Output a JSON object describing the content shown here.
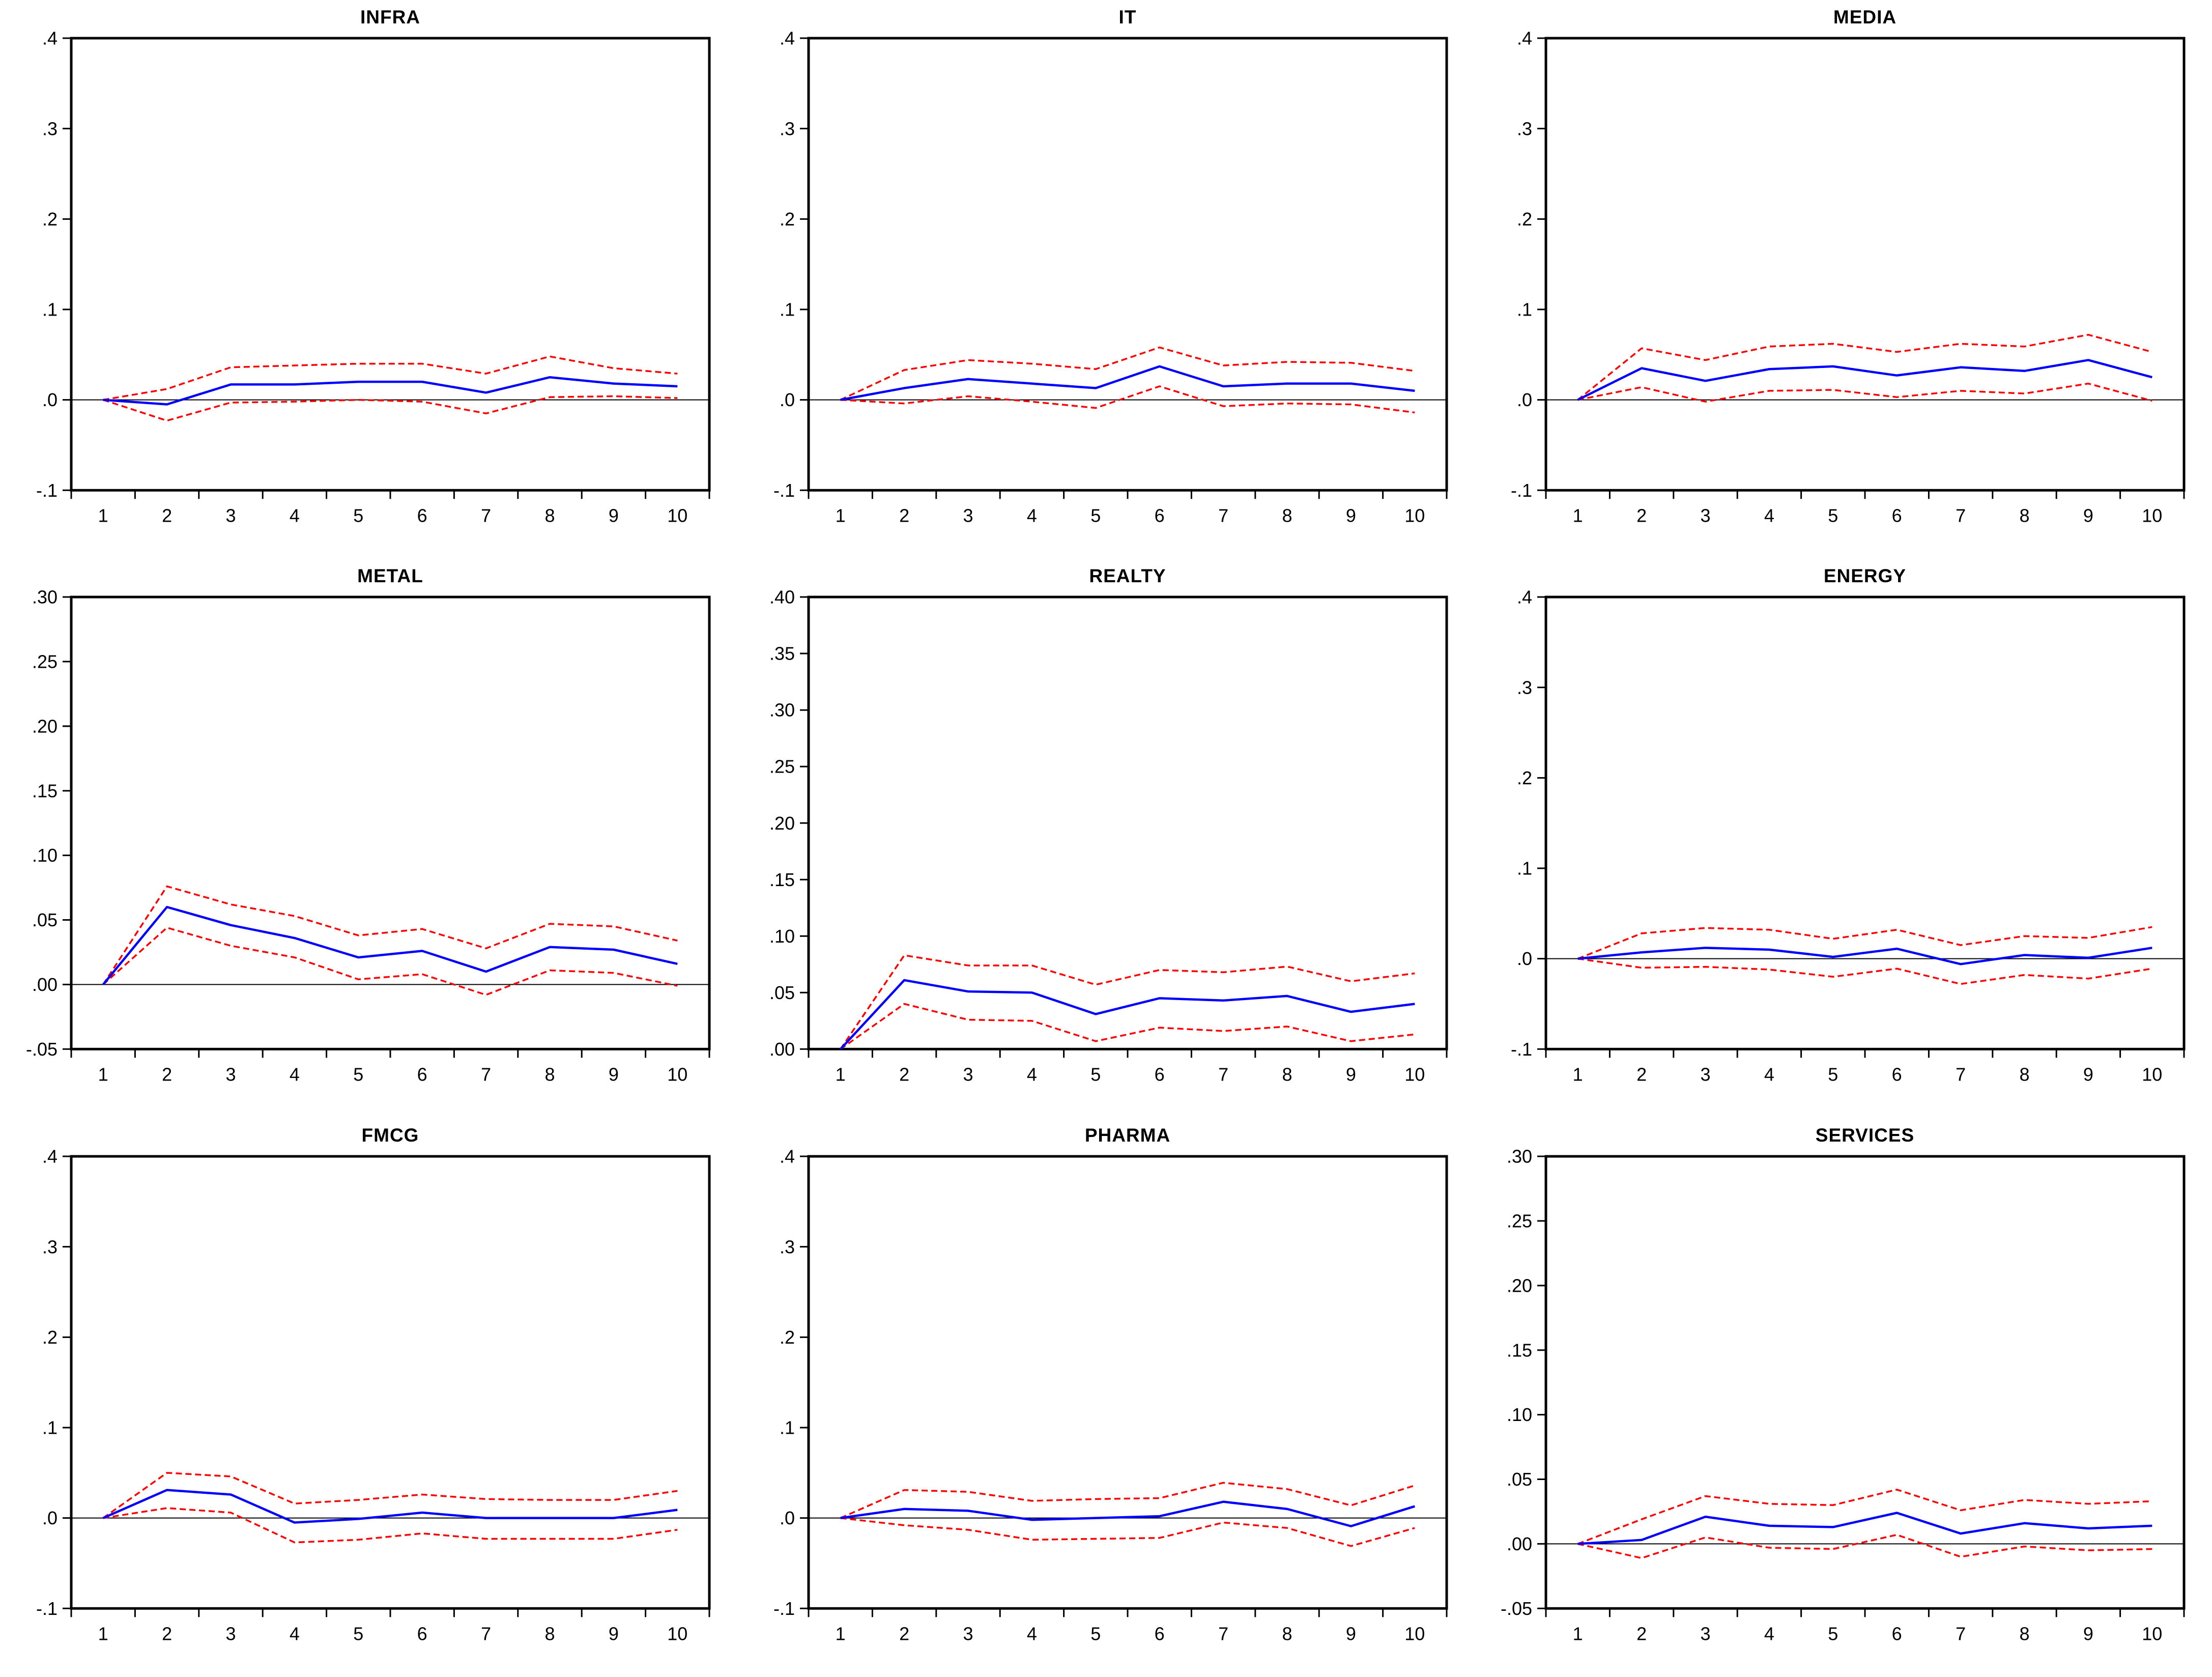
{
  "page": {
    "background": "#ffffff"
  },
  "colors": {
    "frame": "#000000",
    "zero_line": "#000000",
    "response_line": "#0000ff",
    "band_line": "#ff0000"
  },
  "chart_data": [
    {
      "type": "line",
      "title": "INFRA",
      "xlabel": "",
      "ylabel": "",
      "x": [
        1,
        2,
        3,
        4,
        5,
        6,
        7,
        8,
        9,
        10
      ],
      "ylim": [
        -0.1,
        0.4
      ],
      "grid": false,
      "legend": "none",
      "yticks": [
        {
          "label": ".4",
          "value": 0.4
        },
        {
          "label": ".3",
          "value": 0.3
        },
        {
          "label": ".2",
          "value": 0.2
        },
        {
          "label": ".1",
          "value": 0.1
        },
        {
          "label": ".0",
          "value": 0.0
        },
        {
          "label": "-.1",
          "value": -0.1
        }
      ],
      "series": [
        {
          "name": "upper-band",
          "style": "dashed",
          "values": [
            0.0,
            0.012,
            0.036,
            0.038,
            0.04,
            0.04,
            0.029,
            0.048,
            0.035,
            0.029
          ]
        },
        {
          "name": "lower-band",
          "style": "dashed",
          "values": [
            0.0,
            -0.023,
            -0.003,
            -0.002,
            0.0,
            -0.002,
            -0.015,
            0.003,
            0.004,
            0.002
          ]
        },
        {
          "name": "response",
          "style": "solid",
          "values": [
            0.0,
            -0.005,
            0.017,
            0.017,
            0.02,
            0.02,
            0.008,
            0.025,
            0.018,
            0.015
          ]
        }
      ]
    },
    {
      "type": "line",
      "title": "IT",
      "xlabel": "",
      "ylabel": "",
      "x": [
        1,
        2,
        3,
        4,
        5,
        6,
        7,
        8,
        9,
        10
      ],
      "ylim": [
        -0.1,
        0.4
      ],
      "grid": false,
      "legend": "none",
      "yticks": [
        {
          "label": ".4",
          "value": 0.4
        },
        {
          "label": ".3",
          "value": 0.3
        },
        {
          "label": ".2",
          "value": 0.2
        },
        {
          "label": ".1",
          "value": 0.1
        },
        {
          "label": ".0",
          "value": 0.0
        },
        {
          "label": "-.1",
          "value": -0.1
        }
      ],
      "series": [
        {
          "name": "upper-band",
          "style": "dashed",
          "values": [
            0.0,
            0.033,
            0.044,
            0.04,
            0.034,
            0.058,
            0.038,
            0.042,
            0.041,
            0.032
          ]
        },
        {
          "name": "lower-band",
          "style": "dashed",
          "values": [
            0.0,
            -0.004,
            0.004,
            -0.002,
            -0.009,
            0.015,
            -0.007,
            -0.004,
            -0.005,
            -0.014
          ]
        },
        {
          "name": "response",
          "style": "solid",
          "values": [
            0.0,
            0.013,
            0.023,
            0.018,
            0.013,
            0.037,
            0.015,
            0.018,
            0.018,
            0.01
          ]
        }
      ]
    },
    {
      "type": "line",
      "title": "MEDIA",
      "xlabel": "",
      "ylabel": "",
      "x": [
        1,
        2,
        3,
        4,
        5,
        6,
        7,
        8,
        9,
        10
      ],
      "ylim": [
        -0.1,
        0.4
      ],
      "grid": false,
      "legend": "none",
      "yticks": [
        {
          "label": ".4",
          "value": 0.4
        },
        {
          "label": ".3",
          "value": 0.3
        },
        {
          "label": ".2",
          "value": 0.2
        },
        {
          "label": ".1",
          "value": 0.1
        },
        {
          "label": ".0",
          "value": 0.0
        },
        {
          "label": "-.1",
          "value": -0.1
        }
      ],
      "series": [
        {
          "name": "upper-band",
          "style": "dashed",
          "values": [
            0.0,
            0.057,
            0.044,
            0.059,
            0.062,
            0.053,
            0.062,
            0.059,
            0.072,
            0.053
          ]
        },
        {
          "name": "lower-band",
          "style": "dashed",
          "values": [
            0.0,
            0.014,
            -0.002,
            0.01,
            0.011,
            0.003,
            0.01,
            0.007,
            0.018,
            -0.001
          ]
        },
        {
          "name": "response",
          "style": "solid",
          "values": [
            0.0,
            0.035,
            0.021,
            0.034,
            0.037,
            0.027,
            0.036,
            0.032,
            0.044,
            0.025
          ]
        }
      ]
    },
    {
      "type": "line",
      "title": "METAL",
      "xlabel": "",
      "ylabel": "",
      "x": [
        1,
        2,
        3,
        4,
        5,
        6,
        7,
        8,
        9,
        10
      ],
      "ylim": [
        -0.05,
        0.3
      ],
      "grid": false,
      "legend": "none",
      "yticks": [
        {
          "label": ".30",
          "value": 0.3
        },
        {
          "label": ".25",
          "value": 0.25
        },
        {
          "label": ".20",
          "value": 0.2
        },
        {
          "label": ".15",
          "value": 0.15
        },
        {
          "label": ".10",
          "value": 0.1
        },
        {
          "label": ".05",
          "value": 0.05
        },
        {
          "label": ".00",
          "value": 0.0
        },
        {
          "label": "-.05",
          "value": -0.05
        }
      ],
      "series": [
        {
          "name": "upper-band",
          "style": "dashed",
          "values": [
            0.0,
            0.076,
            0.062,
            0.053,
            0.038,
            0.043,
            0.028,
            0.047,
            0.045,
            0.034
          ]
        },
        {
          "name": "lower-band",
          "style": "dashed",
          "values": [
            0.0,
            0.044,
            0.03,
            0.021,
            0.004,
            0.008,
            -0.008,
            0.011,
            0.009,
            -0.001
          ]
        },
        {
          "name": "response",
          "style": "solid",
          "values": [
            0.0,
            0.06,
            0.046,
            0.036,
            0.021,
            0.026,
            0.01,
            0.029,
            0.027,
            0.016
          ]
        }
      ]
    },
    {
      "type": "line",
      "title": "REALTY",
      "xlabel": "",
      "ylabel": "",
      "x": [
        1,
        2,
        3,
        4,
        5,
        6,
        7,
        8,
        9,
        10
      ],
      "ylim": [
        0.0,
        0.4
      ],
      "grid": false,
      "legend": "none",
      "yticks": [
        {
          "label": ".40",
          "value": 0.4
        },
        {
          "label": ".35",
          "value": 0.35
        },
        {
          "label": ".30",
          "value": 0.3
        },
        {
          "label": ".25",
          "value": 0.25
        },
        {
          "label": ".20",
          "value": 0.2
        },
        {
          "label": ".15",
          "value": 0.15
        },
        {
          "label": ".10",
          "value": 0.1
        },
        {
          "label": ".05",
          "value": 0.05
        },
        {
          "label": ".00",
          "value": 0.0
        }
      ],
      "series": [
        {
          "name": "upper-band",
          "style": "dashed",
          "values": [
            0.0,
            0.083,
            0.074,
            0.074,
            0.057,
            0.07,
            0.068,
            0.073,
            0.06,
            0.067
          ]
        },
        {
          "name": "lower-band",
          "style": "dashed",
          "values": [
            0.0,
            0.04,
            0.026,
            0.025,
            0.007,
            0.019,
            0.016,
            0.02,
            0.007,
            0.013
          ]
        },
        {
          "name": "response",
          "style": "solid",
          "values": [
            0.0,
            0.061,
            0.051,
            0.05,
            0.031,
            0.045,
            0.043,
            0.047,
            0.033,
            0.04
          ]
        }
      ]
    },
    {
      "type": "line",
      "title": "ENERGY",
      "xlabel": "",
      "ylabel": "",
      "x": [
        1,
        2,
        3,
        4,
        5,
        6,
        7,
        8,
        9,
        10
      ],
      "ylim": [
        -0.1,
        0.4
      ],
      "grid": false,
      "legend": "none",
      "yticks": [
        {
          "label": ".4",
          "value": 0.4
        },
        {
          "label": ".3",
          "value": 0.3
        },
        {
          "label": ".2",
          "value": 0.2
        },
        {
          "label": ".1",
          "value": 0.1
        },
        {
          "label": ".0",
          "value": 0.0
        },
        {
          "label": "-.1",
          "value": -0.1
        }
      ],
      "series": [
        {
          "name": "upper-band",
          "style": "dashed",
          "values": [
            0.0,
            0.028,
            0.034,
            0.032,
            0.022,
            0.032,
            0.015,
            0.025,
            0.023,
            0.035
          ]
        },
        {
          "name": "lower-band",
          "style": "dashed",
          "values": [
            0.0,
            -0.01,
            -0.009,
            -0.012,
            -0.02,
            -0.011,
            -0.028,
            -0.018,
            -0.022,
            -0.011
          ]
        },
        {
          "name": "response",
          "style": "solid",
          "values": [
            0.0,
            0.007,
            0.012,
            0.01,
            0.002,
            0.011,
            -0.006,
            0.004,
            0.001,
            0.012
          ]
        }
      ]
    },
    {
      "type": "line",
      "title": "FMCG",
      "xlabel": "",
      "ylabel": "",
      "x": [
        1,
        2,
        3,
        4,
        5,
        6,
        7,
        8,
        9,
        10
      ],
      "ylim": [
        -0.1,
        0.4
      ],
      "grid": false,
      "legend": "none",
      "yticks": [
        {
          "label": ".4",
          "value": 0.4
        },
        {
          "label": ".3",
          "value": 0.3
        },
        {
          "label": ".2",
          "value": 0.2
        },
        {
          "label": ".1",
          "value": 0.1
        },
        {
          "label": ".0",
          "value": 0.0
        },
        {
          "label": "-.1",
          "value": -0.1
        }
      ],
      "series": [
        {
          "name": "upper-band",
          "style": "dashed",
          "values": [
            0.0,
            0.05,
            0.046,
            0.016,
            0.02,
            0.026,
            0.021,
            0.02,
            0.02,
            0.03
          ]
        },
        {
          "name": "lower-band",
          "style": "dashed",
          "values": [
            0.0,
            0.011,
            0.006,
            -0.027,
            -0.024,
            -0.017,
            -0.023,
            -0.023,
            -0.023,
            -0.013
          ]
        },
        {
          "name": "response",
          "style": "solid",
          "values": [
            0.0,
            0.031,
            0.026,
            -0.005,
            -0.001,
            0.006,
            0.0,
            0.0,
            0.0,
            0.009
          ]
        }
      ]
    },
    {
      "type": "line",
      "title": "PHARMA",
      "xlabel": "",
      "ylabel": "",
      "x": [
        1,
        2,
        3,
        4,
        5,
        6,
        7,
        8,
        9,
        10
      ],
      "ylim": [
        -0.1,
        0.4
      ],
      "grid": false,
      "legend": "none",
      "yticks": [
        {
          "label": ".4",
          "value": 0.4
        },
        {
          "label": ".3",
          "value": 0.3
        },
        {
          "label": ".2",
          "value": 0.2
        },
        {
          "label": ".1",
          "value": 0.1
        },
        {
          "label": ".0",
          "value": 0.0
        },
        {
          "label": "-.1",
          "value": -0.1
        }
      ],
      "series": [
        {
          "name": "upper-band",
          "style": "dashed",
          "values": [
            0.0,
            0.031,
            0.029,
            0.019,
            0.021,
            0.022,
            0.039,
            0.032,
            0.014,
            0.036
          ]
        },
        {
          "name": "lower-band",
          "style": "dashed",
          "values": [
            0.0,
            -0.008,
            -0.013,
            -0.024,
            -0.023,
            -0.022,
            -0.005,
            -0.011,
            -0.031,
            -0.011
          ]
        },
        {
          "name": "response",
          "style": "solid",
          "values": [
            0.0,
            0.01,
            0.008,
            -0.002,
            0.0,
            0.002,
            0.018,
            0.01,
            -0.009,
            0.013
          ]
        }
      ]
    },
    {
      "type": "line",
      "title": "SERVICES",
      "xlabel": "",
      "ylabel": "",
      "x": [
        1,
        2,
        3,
        4,
        5,
        6,
        7,
        8,
        9,
        10
      ],
      "ylim": [
        -0.05,
        0.3
      ],
      "grid": false,
      "legend": "none",
      "yticks": [
        {
          "label": ".30",
          "value": 0.3
        },
        {
          "label": ".25",
          "value": 0.25
        },
        {
          "label": ".20",
          "value": 0.2
        },
        {
          "label": ".15",
          "value": 0.15
        },
        {
          "label": ".10",
          "value": 0.1
        },
        {
          "label": ".05",
          "value": 0.05
        },
        {
          "label": ".00",
          "value": 0.0
        },
        {
          "label": "-.05",
          "value": -0.05
        }
      ],
      "series": [
        {
          "name": "upper-band",
          "style": "dashed",
          "values": [
            0.0,
            0.019,
            0.037,
            0.031,
            0.03,
            0.042,
            0.026,
            0.034,
            0.031,
            0.033
          ]
        },
        {
          "name": "lower-band",
          "style": "dashed",
          "values": [
            0.0,
            -0.011,
            0.005,
            -0.003,
            -0.004,
            0.007,
            -0.01,
            -0.002,
            -0.005,
            -0.004
          ]
        },
        {
          "name": "response",
          "style": "solid",
          "values": [
            0.0,
            0.003,
            0.021,
            0.014,
            0.013,
            0.024,
            0.008,
            0.016,
            0.012,
            0.014
          ]
        }
      ]
    }
  ]
}
